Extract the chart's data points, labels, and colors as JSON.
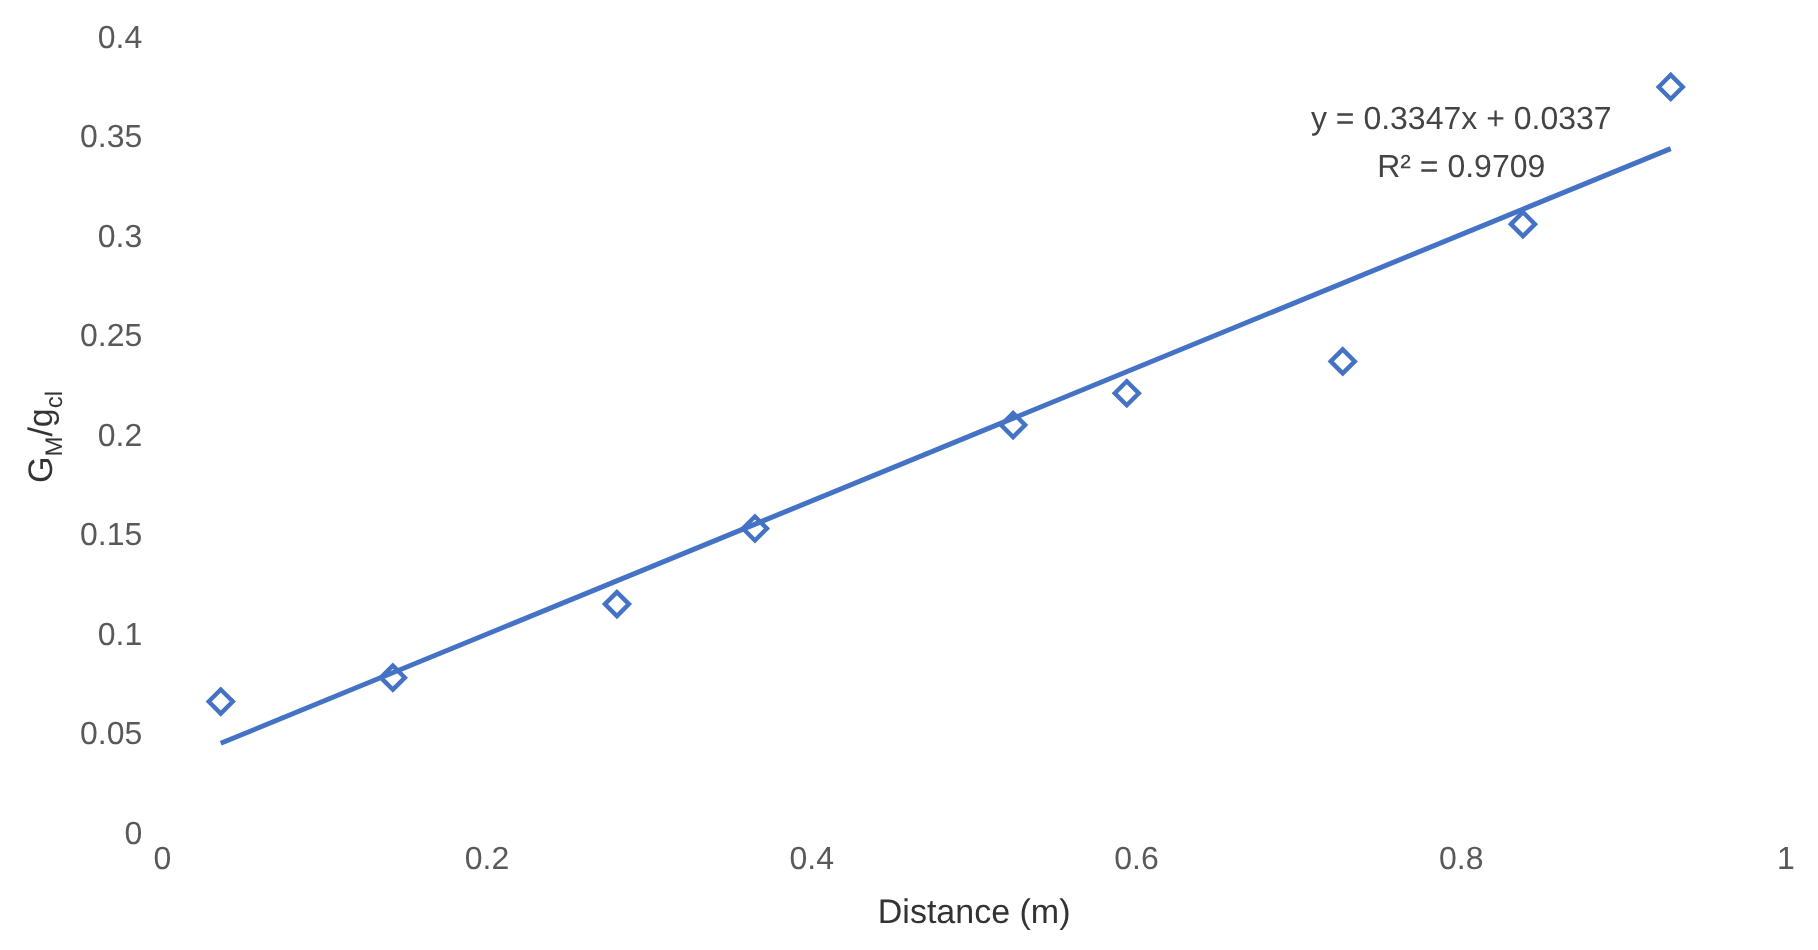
{
  "chart_data": {
    "type": "scatter",
    "xlabel": "Distance (m)",
    "ylabel": "G$_{M}$/g$_{cl}$",
    "xlim": [
      0,
      1
    ],
    "xticks": [
      0,
      0.2,
      0.4,
      0.6,
      0.8,
      1
    ],
    "ylim": [
      0,
      0.4
    ],
    "yticks": [
      0,
      0.05,
      0.1,
      0.15,
      0.2,
      0.25,
      0.3,
      0.35,
      0.4
    ],
    "grid": false,
    "legend": false,
    "marker": "diamond",
    "series": [
      {
        "color": "#4472c4",
        "x": [
          0.036,
          0.142,
          0.28,
          0.365,
          0.524,
          0.594,
          0.727,
          0.838,
          0.929
        ],
        "values": [
          0.067,
          0.079,
          0.116,
          0.154,
          0.206,
          0.222,
          0.238,
          0.307,
          0.376
        ]
      },
      {
        "type": "line",
        "color": "#4472c4",
        "marker": "none",
        "line_style": "solid",
        "x": [
          0.036,
          0.929
        ],
        "values": [
          0.046,
          0.345
        ]
      }
    ],
    "annotations": [
      "y = 0.3347x + 0.0337",
      "R² = 0.9709"
    ]
  }
}
